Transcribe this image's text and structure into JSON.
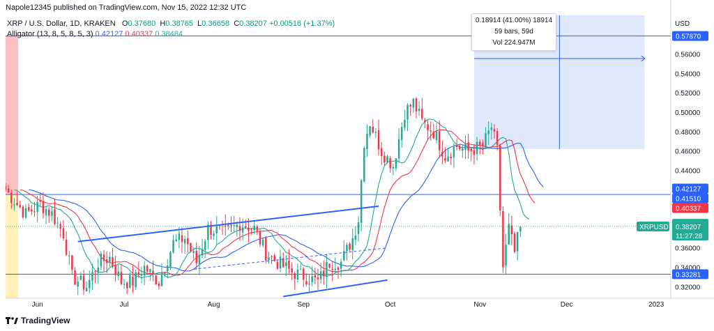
{
  "header": {
    "publisher": "Napole12345 published on TradingView.com, Nov 15, 2022 12:32 UTC"
  },
  "legend": {
    "symbol": "XRP / U.S. Dollar, 1D, KRAKEN",
    "ohlc": [
      {
        "key": "O",
        "value": "0.37680"
      },
      {
        "key": "H",
        "value": "0.38765"
      },
      {
        "key": "L",
        "value": "0.36658"
      },
      {
        "key": "C",
        "value": "0.38207"
      }
    ],
    "change": "+0.00516 (+1.37%)",
    "indicator_label": "Alligator (13, 8, 5, 8, 5, 3)",
    "indicator_values": [
      "0.42127",
      "0.40337",
      "0.38484"
    ]
  },
  "tooltip": {
    "line1": "0.18914 (41.00%) 18914",
    "line2": "59 bars, 59d",
    "line3": "Vol 224.947M"
  },
  "footer": {
    "brand": "TradingView"
  },
  "colors": {
    "up": "#22ab94",
    "down": "#f23645",
    "jaw": "#2962ff",
    "teeth": "#f23645",
    "lips": "#22ab94",
    "hline": "#2962ff",
    "range_box": "#dbe4fb"
  },
  "chart_data": {
    "type": "candlestick",
    "currency_label": "USD",
    "ylim": [
      0.308,
      0.6
    ],
    "y_ticks": [
      "0.56000",
      "0.54000",
      "0.52000",
      "0.50000",
      "0.48000",
      "0.46000",
      "0.44000",
      "0.36000",
      "0.34000",
      "0.32000"
    ],
    "x_ticks": [
      {
        "label": "Jun",
        "date": "2022-06-01"
      },
      {
        "label": "Jul",
        "date": "2022-07-01"
      },
      {
        "label": "Aug",
        "date": "2022-08-01"
      },
      {
        "label": "Sep",
        "date": "2022-09-01"
      },
      {
        "label": "Oct",
        "date": "2022-10-01"
      },
      {
        "label": "Nov",
        "date": "2022-11-01"
      },
      {
        "label": "Dec",
        "date": "2022-12-01"
      },
      {
        "label": "2023",
        "date": "2023-01-01"
      }
    ],
    "start_date": "2022-05-21",
    "end_date": "2023-01-06",
    "last_date": "2022-11-15",
    "horizontal_levels": [
      0.5787,
      0.4151,
      0.3328
    ],
    "price_badges": [
      {
        "value": "0.57870",
        "color": "#2962ff"
      },
      {
        "value": "0.42127",
        "color": "#2962ff"
      },
      {
        "value": "0.41510",
        "color": "#2962ff"
      },
      {
        "value": "0.40337",
        "color": "#f23645"
      },
      {
        "value": "0.38484",
        "color": "#22ab94"
      },
      {
        "value": "0.33281",
        "color": "#2962ff"
      }
    ],
    "last_price": {
      "symbol": "XRPUSD",
      "value": "0.38207",
      "countdown": "11:27:28"
    },
    "price_range": {
      "from_date": "2022-10-30",
      "to_date": "2022-12-28",
      "low": 0.462,
      "high": 0.6,
      "arrow_price": 0.5554
    },
    "trendlines": [
      {
        "x1": "2022-06-15",
        "y1": 0.3665,
        "x2": "2022-09-27",
        "y2": 0.403
      },
      {
        "x1": "2022-08-25",
        "y1": 0.3098,
        "x2": "2022-09-30",
        "y2": 0.3268
      }
    ],
    "dashed_trendline": {
      "x1": "2022-07-25",
      "y1": 0.338,
      "x2": "2022-09-30",
      "y2": 0.36
    },
    "ohlc_anchors": [
      [
        "2022-05-21",
        0.42
      ],
      [
        "2022-05-25",
        0.405
      ],
      [
        "2022-05-28",
        0.395
      ],
      [
        "2022-06-02",
        0.405
      ],
      [
        "2022-06-06",
        0.395
      ],
      [
        "2022-06-10",
        0.375
      ],
      [
        "2022-06-13",
        0.33
      ],
      [
        "2022-06-18",
        0.32
      ],
      [
        "2022-06-22",
        0.345
      ],
      [
        "2022-06-26",
        0.35
      ],
      [
        "2022-06-30",
        0.325
      ],
      [
        "2022-07-04",
        0.325
      ],
      [
        "2022-07-08",
        0.34
      ],
      [
        "2022-07-13",
        0.325
      ],
      [
        "2022-07-18",
        0.365
      ],
      [
        "2022-07-22",
        0.37
      ],
      [
        "2022-07-26",
        0.345
      ],
      [
        "2022-07-30",
        0.38
      ],
      [
        "2022-08-05",
        0.375
      ],
      [
        "2022-08-10",
        0.385
      ],
      [
        "2022-08-15",
        0.38
      ],
      [
        "2022-08-19",
        0.355
      ],
      [
        "2022-08-23",
        0.345
      ],
      [
        "2022-08-28",
        0.335
      ],
      [
        "2022-09-02",
        0.33
      ],
      [
        "2022-09-06",
        0.325
      ],
      [
        "2022-09-10",
        0.345
      ],
      [
        "2022-09-14",
        0.345
      ],
      [
        "2022-09-18",
        0.37
      ],
      [
        "2022-09-20",
        0.39
      ],
      [
        "2022-09-22",
        0.47
      ],
      [
        "2022-09-24",
        0.49
      ],
      [
        "2022-09-28",
        0.46
      ],
      [
        "2022-10-02",
        0.445
      ],
      [
        "2022-10-06",
        0.5
      ],
      [
        "2022-10-09",
        0.51
      ],
      [
        "2022-10-12",
        0.49
      ],
      [
        "2022-10-16",
        0.48
      ],
      [
        "2022-10-20",
        0.455
      ],
      [
        "2022-10-24",
        0.465
      ],
      [
        "2022-10-28",
        0.46
      ],
      [
        "2022-11-02",
        0.465
      ],
      [
        "2022-11-05",
        0.485
      ],
      [
        "2022-11-07",
        0.46
      ],
      [
        "2022-11-08",
        0.4
      ],
      [
        "2022-11-09",
        0.34
      ],
      [
        "2022-11-11",
        0.38
      ],
      [
        "2022-11-13",
        0.355
      ],
      [
        "2022-11-15",
        0.382
      ]
    ]
  }
}
